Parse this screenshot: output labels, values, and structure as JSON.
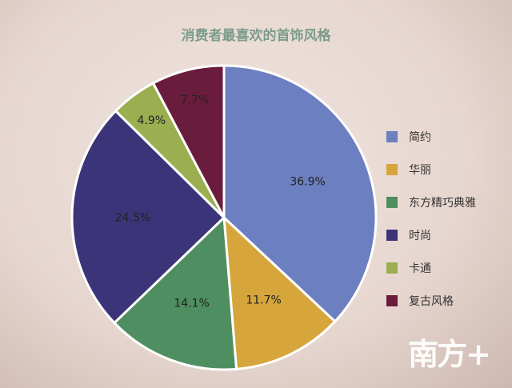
{
  "chart_data": {
    "type": "pie",
    "title": "消费者最喜欢的首饰风格",
    "categories": [
      "简约",
      "华丽",
      "东方精巧典雅",
      "时尚",
      "卡通",
      "复古风格"
    ],
    "values": [
      36.9,
      11.7,
      14.1,
      24.5,
      4.9,
      7.7
    ],
    "labels": [
      "36.9%",
      "11.7%",
      "14.1%",
      "24.5%",
      "4.9%",
      "7.7%"
    ],
    "colors": [
      "#6c7fc0",
      "#d6a63c",
      "#4f8e60",
      "#3b3479",
      "#9bae50",
      "#6a1c3c"
    ],
    "legend": "right",
    "start": "top, clockwise"
  },
  "watermark": "南方+"
}
